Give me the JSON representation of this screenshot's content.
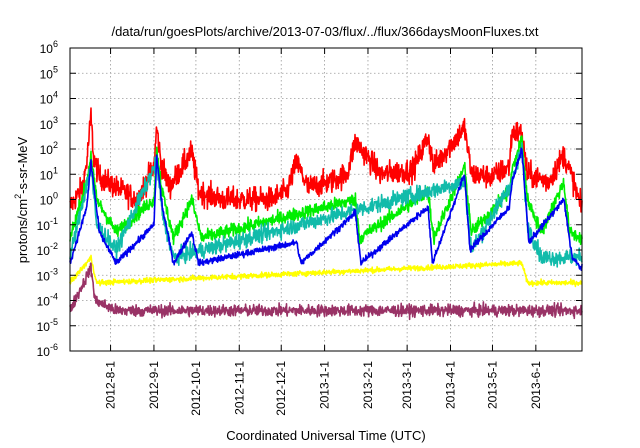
{
  "chart_data": {
    "type": "line",
    "title": "/data/run/goesPlots/archive/2013-07-03/flux/../flux/366daysMoonFluxes.txt",
    "xlabel": "Coordinated Universal Time (UTC)",
    "ylabel": {
      "prefix": "protons/cm",
      "sup": "2",
      "suffix": "-s-sr-MeV"
    },
    "yscale": "log",
    "ylim": [
      1e-06,
      1000000.0
    ],
    "xlim": [
      "2012-07-03",
      "2013-07-04"
    ],
    "grid": true,
    "yticks": [
      {
        "base": "10",
        "exp": "-6"
      },
      {
        "base": "10",
        "exp": "-5"
      },
      {
        "base": "10",
        "exp": "-4"
      },
      {
        "base": "10",
        "exp": "-3"
      },
      {
        "base": "10",
        "exp": "-2"
      },
      {
        "base": "10",
        "exp": "-1"
      },
      {
        "base": "10",
        "exp": "0"
      },
      {
        "base": "10",
        "exp": "1"
      },
      {
        "base": "10",
        "exp": "2"
      },
      {
        "base": "10",
        "exp": "3"
      },
      {
        "base": "10",
        "exp": "4"
      },
      {
        "base": "10",
        "exp": "5"
      },
      {
        "base": "10",
        "exp": "6"
      }
    ],
    "xticks": [
      {
        "label": "2012-8-1",
        "date": "2012-08-01"
      },
      {
        "label": "2012-9-1",
        "date": "2012-09-01"
      },
      {
        "label": "2012-10-1",
        "date": "2012-10-01"
      },
      {
        "label": "2012-11-1",
        "date": "2012-11-01"
      },
      {
        "label": "2012-12-1",
        "date": "2012-12-01"
      },
      {
        "label": "2013-1-1",
        "date": "2013-01-01"
      },
      {
        "label": "2013-2-1",
        "date": "2013-02-01"
      },
      {
        "label": "2013-3-1",
        "date": "2013-03-01"
      },
      {
        "label": "2013-4-1",
        "date": "2013-04-01"
      },
      {
        "label": "2013-5-1",
        "date": "2013-05-01"
      },
      {
        "label": "2013-6-1",
        "date": "2013-06-01"
      }
    ],
    "series": [
      {
        "color": "#ff0000",
        "base_log10": -0.1,
        "noise": 0.45,
        "points": [
          [
            "2012-07-03",
            0.5
          ],
          [
            "2012-07-12",
            3
          ],
          [
            "2012-07-15",
            30
          ],
          [
            "2012-07-18",
            2000
          ],
          [
            "2012-07-20",
            40
          ],
          [
            "2012-07-24",
            8
          ],
          [
            "2012-08-05",
            3
          ],
          [
            "2012-08-20",
            1
          ],
          [
            "2012-09-01",
            20
          ],
          [
            "2012-09-03",
            700
          ],
          [
            "2012-09-06",
            30
          ],
          [
            "2012-09-12",
            3
          ],
          [
            "2012-09-28",
            80
          ],
          [
            "2012-10-03",
            2
          ],
          [
            "2012-10-20",
            1
          ],
          [
            "2012-11-05",
            1
          ],
          [
            "2012-11-22",
            1
          ],
          [
            "2012-12-05",
            2
          ],
          [
            "2012-12-12",
            30
          ],
          [
            "2012-12-20",
            3
          ],
          [
            "2013-01-05",
            5
          ],
          [
            "2013-01-17",
            10
          ],
          [
            "2013-01-23",
            200
          ],
          [
            "2013-02-10",
            10
          ],
          [
            "2013-03-05",
            15
          ],
          [
            "2013-03-16",
            300
          ],
          [
            "2013-03-20",
            20
          ],
          [
            "2013-04-11",
            700
          ],
          [
            "2013-04-16",
            10
          ],
          [
            "2013-05-01",
            8
          ],
          [
            "2013-05-13",
            20
          ],
          [
            "2013-05-15",
            500
          ],
          [
            "2013-05-22",
            400
          ],
          [
            "2013-05-26",
            10
          ],
          [
            "2013-06-10",
            5
          ],
          [
            "2013-06-21",
            60
          ],
          [
            "2013-06-28",
            5
          ],
          [
            "2013-07-03",
            0.5
          ]
        ]
      },
      {
        "color": "#00ee00",
        "base_log10": -1.5,
        "noise": 0.25,
        "points": [
          [
            "2012-07-03",
            0.03
          ],
          [
            "2012-07-15",
            5
          ],
          [
            "2012-07-18",
            60
          ],
          [
            "2012-07-22",
            1
          ],
          [
            "2012-08-05",
            0.05
          ],
          [
            "2012-09-01",
            1
          ],
          [
            "2012-09-03",
            90
          ],
          [
            "2012-09-07",
            2
          ],
          [
            "2012-09-15",
            0.03
          ],
          [
            "2012-09-28",
            1
          ],
          [
            "2012-10-05",
            0.03
          ],
          [
            "2013-01-23",
            1
          ],
          [
            "2013-01-26",
            0.03
          ],
          [
            "2013-03-16",
            2
          ],
          [
            "2013-03-20",
            0.03
          ],
          [
            "2013-04-11",
            20
          ],
          [
            "2013-04-16",
            0.05
          ],
          [
            "2013-05-13",
            2
          ],
          [
            "2013-05-15",
            15
          ],
          [
            "2013-05-22",
            250
          ],
          [
            "2013-05-26",
            1
          ],
          [
            "2013-06-05",
            0.05
          ],
          [
            "2013-06-21",
            5
          ],
          [
            "2013-06-25",
            0.05
          ],
          [
            "2013-07-03",
            0.03
          ]
        ]
      },
      {
        "color": "#11bbaa",
        "base_log10": -2.3,
        "noise": 0.3,
        "points": [
          [
            "2012-07-03",
            0.005
          ],
          [
            "2012-07-18",
            20
          ],
          [
            "2012-07-22",
            0.1
          ],
          [
            "2012-08-05",
            0.01
          ],
          [
            "2012-09-03",
            30
          ],
          [
            "2012-09-07",
            0.3
          ],
          [
            "2012-09-15",
            0.005
          ],
          [
            "2013-04-11",
            5
          ],
          [
            "2013-04-16",
            0.01
          ],
          [
            "2013-05-15",
            5
          ],
          [
            "2013-05-22",
            100
          ],
          [
            "2013-05-26",
            0.1
          ],
          [
            "2013-06-05",
            0.005
          ],
          [
            "2013-07-03",
            0.005
          ]
        ]
      },
      {
        "color": "#0000ee",
        "base_log10": -2.55,
        "noise": 0.12,
        "points": [
          [
            "2012-07-03",
            0.003
          ],
          [
            "2012-07-15",
            0.5
          ],
          [
            "2012-07-18",
            30
          ],
          [
            "2012-07-24",
            0.05
          ],
          [
            "2012-08-05",
            0.003
          ],
          [
            "2012-09-01",
            0.1
          ],
          [
            "2012-09-03",
            50
          ],
          [
            "2012-09-07",
            0.5
          ],
          [
            "2012-09-15",
            0.003
          ],
          [
            "2012-09-28",
            0.05
          ],
          [
            "2012-10-03",
            0.003
          ],
          [
            "2012-12-12",
            0.02
          ],
          [
            "2012-12-15",
            0.003
          ],
          [
            "2013-01-23",
            0.3
          ],
          [
            "2013-01-27",
            0.003
          ],
          [
            "2013-03-16",
            0.5
          ],
          [
            "2013-03-19",
            0.003
          ],
          [
            "2013-04-11",
            10
          ],
          [
            "2013-04-15",
            0.01
          ],
          [
            "2013-05-13",
            0.5
          ],
          [
            "2013-05-15",
            5
          ],
          [
            "2013-05-22",
            100
          ],
          [
            "2013-05-27",
            0.02
          ],
          [
            "2013-06-21",
            1
          ],
          [
            "2013-06-27",
            0.005
          ],
          [
            "2013-07-03",
            0.002
          ]
        ]
      },
      {
        "color": "#ffff00",
        "base_log10": -3.35,
        "noise": 0.1,
        "points": [
          [
            "2012-07-03",
            0.0005
          ],
          [
            "2012-07-18",
            0.005
          ],
          [
            "2012-07-22",
            0.0005
          ],
          [
            "2013-05-22",
            0.003
          ],
          [
            "2013-05-26",
            0.0005
          ],
          [
            "2013-07-03",
            0.0005
          ]
        ]
      },
      {
        "color": "#993366",
        "base_log10": -4.3,
        "noise": 0.22,
        "points": [
          [
            "2012-07-03",
            4e-05
          ],
          [
            "2012-07-18",
            0.002
          ],
          [
            "2012-07-21",
            0.0001
          ],
          [
            "2012-08-05",
            4e-05
          ],
          [
            "2013-07-03",
            4e-05
          ]
        ]
      }
    ]
  }
}
